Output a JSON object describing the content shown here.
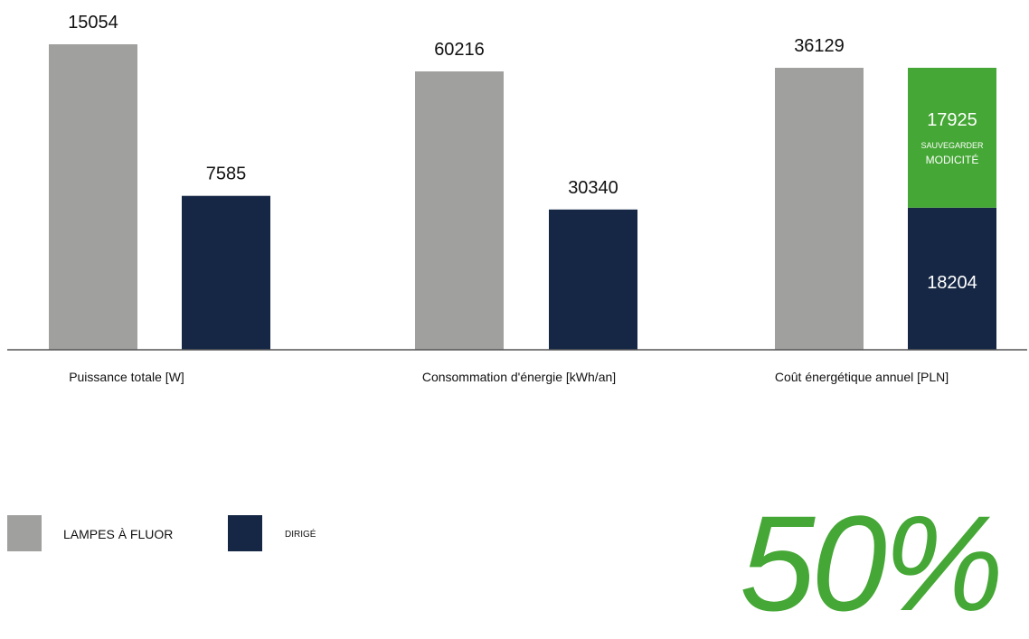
{
  "chart_data": {
    "type": "bar",
    "categories": [
      "Puissance totale [W]",
      "Consommation d'énergie [kWh/an]",
      "Coût énergétique annuel [PLN]"
    ],
    "series": [
      {
        "name": "LAMPES À FLUOR",
        "color": "#a0a09e",
        "values": [
          15054,
          60216,
          36129
        ]
      },
      {
        "name": "DIRIGÉ",
        "color": "#152745",
        "values": [
          7585,
          30340,
          18204
        ]
      }
    ],
    "savings": {
      "category_index": 2,
      "value": 17925,
      "label_line1": "SAUVEGARDER",
      "label_line2": "MODICITÉ",
      "color": "#45a735"
    },
    "legend": {
      "fluor_label": "LAMPES À FLUOR",
      "led_label": "DIRIGÉ"
    },
    "percent_text": "50%"
  }
}
